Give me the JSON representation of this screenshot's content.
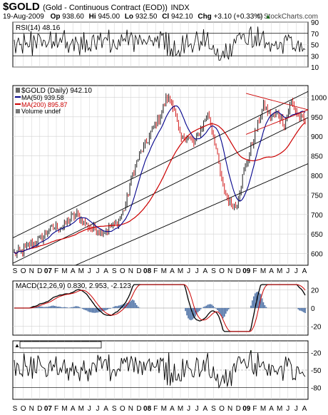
{
  "header": {
    "symbol": "$GOLD",
    "name": "(Gold - Continuous Contract (EOD))",
    "exchange": "INDX",
    "date": "19-Aug-2009",
    "open_label": "Op",
    "open": "938.60",
    "high_label": "Hi",
    "high": "945.00",
    "low_label": "Lo",
    "low": "932.50",
    "close_label": "Cl",
    "close": "942.10",
    "change_label": "Chg",
    "change": "+3.10 (+0.33%)",
    "change_arrow": "▲",
    "watermark": "© StockCharts.com"
  },
  "colors": {
    "price": "#000000",
    "ma50": "#00008b",
    "ma200": "#cc0000",
    "up_bar": "#000000",
    "down_bar": "#cc0000",
    "macd_hist": "#4a6fa5",
    "lower_fill": "#6b8e5a",
    "grid": "#d0d0d0",
    "trend": "#000000",
    "triangle": "#cc0000"
  },
  "chart_data": [
    {
      "type": "line",
      "panel": "rsi",
      "legend": [
        "RSI(14) 48.16"
      ],
      "y_ticks": [
        90,
        70,
        50,
        30,
        10
      ],
      "ylim": [
        10,
        90
      ],
      "reference_lines": [
        70,
        30
      ],
      "last_value": 48.16
    },
    {
      "type": "line",
      "panel": "price",
      "legend": [
        "$GOLD (Daily) 942.10",
        "MA(50) 939.58",
        "MA(200) 895.87",
        "Volume undef"
      ],
      "y_ticks": [
        1000,
        950,
        900,
        850,
        800,
        750,
        700,
        650,
        600
      ],
      "ylim": [
        570,
        1030
      ],
      "x_labels": [
        "S",
        "O",
        "N",
        "D",
        "07",
        "F",
        "M",
        "A",
        "M",
        "J",
        "J",
        "A",
        "S",
        "O",
        "N",
        "D",
        "08",
        "F",
        "M",
        "A",
        "M",
        "J",
        "J",
        "A",
        "S",
        "O",
        "N",
        "D",
        "09",
        "F",
        "M",
        "A",
        "M",
        "J",
        "J",
        "A"
      ],
      "series": [
        {
          "name": "$GOLD (Daily)",
          "last": 942.1
        },
        {
          "name": "MA(50)",
          "last": 939.58
        },
        {
          "name": "MA(200)",
          "last": 895.87
        }
      ],
      "anchors_price": [
        600,
        605,
        620,
        630,
        640,
        660,
        670,
        665,
        690,
        700,
        680,
        665,
        660,
        655,
        670,
        680,
        720,
        800,
        850,
        880,
        920,
        950,
        1000,
        980,
        890,
        900,
        880,
        920,
        960,
        880,
        780,
        730,
        720,
        800,
        860,
        920,
        980,
        950,
        960,
        930,
        990,
        950,
        940
      ]
    },
    {
      "type": "line",
      "panel": "macd",
      "legend": [
        "MACD(12,26,9) 0.830, 2.953, -2.123"
      ],
      "y_ticks": [
        20,
        0,
        -20
      ],
      "ylim": [
        -30,
        30
      ],
      "series": [
        {
          "name": "MACD",
          "last": 0.83
        },
        {
          "name": "Signal",
          "last": 2.953
        },
        {
          "name": "Histogram",
          "last": -2.123
        }
      ]
    },
    {
      "type": "line",
      "panel": "lower",
      "y_ticks": [
        -20,
        -50,
        -80
      ],
      "ylim": [
        -100,
        0
      ],
      "reference_lines": [
        -20,
        -80
      ]
    }
  ],
  "x_axis_bottom": [
    "S",
    "O",
    "N",
    "D",
    "07",
    "F",
    "M",
    "A",
    "M",
    "J",
    "J",
    "A",
    "S",
    "O",
    "N",
    "D",
    "08",
    "F",
    "M",
    "A",
    "M",
    "J",
    "J",
    "A",
    "S",
    "O",
    "N",
    "D",
    "09",
    "F",
    "M",
    "A",
    "M",
    "J",
    "J",
    "A"
  ]
}
